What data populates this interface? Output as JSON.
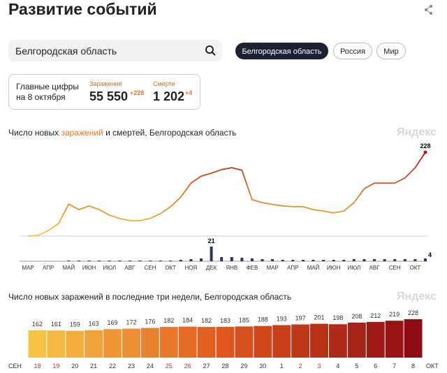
{
  "header": {
    "title": "Развитие событий"
  },
  "search": {
    "query": "Белгородская область"
  },
  "regions": [
    "Белгородская область",
    "Россия",
    "Мир"
  ],
  "summary": {
    "title_lines": [
      "Главные цифры",
      "на 8 октября"
    ],
    "cases": {
      "label": "Заражения",
      "value": "55 550",
      "delta": "+228"
    },
    "deaths": {
      "label": "Смерти",
      "value": "1 202",
      "delta": "+4"
    }
  },
  "watermark": "Яндекс",
  "chart_data": [
    {
      "type": "line",
      "title_parts": [
        "Число новых ",
        "заражений",
        " и смертей, Белгородская область"
      ],
      "title_colors": [
        "#222222",
        "#e8752a",
        "#222222"
      ],
      "values": [
        0,
        2,
        15,
        34,
        87,
        72,
        82,
        72,
        57,
        48,
        42,
        42,
        48,
        61,
        80,
        106,
        144,
        163,
        171,
        181,
        186,
        179,
        99,
        91,
        86,
        82,
        80,
        80,
        72,
        68,
        63,
        68,
        91,
        129,
        144,
        144,
        144,
        158,
        186,
        228
      ],
      "colors": [
        "#f2c94c",
        "#e07b28",
        "#a8171a"
      ]
    },
    {
      "type": "bar",
      "categories": [
        "МАР",
        null,
        "АПР",
        null,
        "МАЙ",
        null,
        "ИЮН",
        null,
        "ИЮЛ",
        null,
        "АВГ",
        null,
        "СЕН",
        null,
        "ОКТ",
        null,
        "НОЯ",
        null,
        "ДЕК",
        null,
        "ЯНВ",
        null,
        "ФЕВ",
        null,
        "МАР",
        null,
        "АПР",
        null,
        "МАЙ",
        null,
        "ИЮН",
        null,
        "ИЮЛ",
        null,
        "АВГ",
        null,
        "СЕН",
        null,
        "ОКТ",
        null
      ],
      "values": [
        0,
        0,
        0,
        0,
        1,
        1,
        1,
        1,
        1,
        1,
        1,
        1,
        1,
        1,
        1,
        2,
        3,
        4,
        21,
        6,
        6,
        5,
        4,
        3,
        3,
        2,
        2,
        2,
        2,
        2,
        2,
        2,
        3,
        3,
        3,
        3,
        3,
        3,
        3,
        4
      ],
      "color": "#2c3566"
    },
    {
      "type": "bar",
      "title": "Число новых заражений в последние три недели, Белгородская область",
      "categories": [
        "18",
        "19",
        "20",
        "21",
        "22",
        "23",
        "24",
        "25",
        "26",
        "27",
        "28",
        "29",
        "30",
        "1",
        "2",
        "3",
        "4",
        "5",
        "6",
        "7",
        "8"
      ],
      "category_colors": [
        "#d0312d",
        "#d0312d",
        "#333333",
        "#333333",
        "#333333",
        "#333333",
        "#333333",
        "#d0312d",
        "#d0312d",
        "#333333",
        "#333333",
        "#333333",
        "#333333",
        "#333333",
        "#d0312d",
        "#d0312d",
        "#333333",
        "#333333",
        "#333333",
        "#333333",
        "#333333"
      ],
      "values": [
        162,
        161,
        159,
        163,
        169,
        172,
        176,
        182,
        184,
        182,
        183,
        185,
        188,
        193,
        197,
        201,
        198,
        208,
        212,
        219,
        228
      ],
      "colors": [
        "#f6c445",
        "#e0561e",
        "#8e0b14"
      ],
      "x_edge_labels": [
        "СЕН",
        "ОКТ"
      ]
    }
  ]
}
